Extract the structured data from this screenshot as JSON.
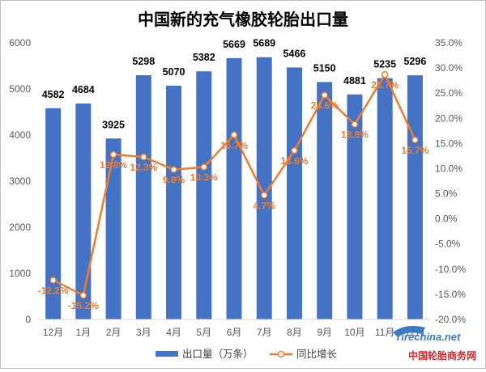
{
  "chart_data": {
    "type": "bar",
    "title": "中国新的充气橡胶轮胎出口量",
    "categories": [
      "12月",
      "1月",
      "2月",
      "3月",
      "4月",
      "5月",
      "6月",
      "7月",
      "8月",
      "9月",
      "10月",
      "11月",
      "12月"
    ],
    "series": [
      {
        "name": "出口量（万条）",
        "type": "bar",
        "axis": "left",
        "color": "#4472c4",
        "values": [
          4582,
          4684,
          3925,
          5298,
          5070,
          5382,
          5669,
          5689,
          5466,
          5150,
          4881,
          5235,
          5296
        ],
        "labels": [
          "4582",
          "4684",
          "3925",
          "5298",
          "5070",
          "5382",
          "5669",
          "5689",
          "5466",
          "5150",
          "4881",
          "5235",
          "5296"
        ]
      },
      {
        "name": "同比增长",
        "type": "line",
        "axis": "right",
        "color": "#ed7d31",
        "values": [
          -12.2,
          -15.2,
          12.8,
          12.3,
          9.8,
          10.3,
          16.7,
          4.7,
          13.6,
          24.6,
          18.8,
          28.7,
          15.7
        ],
        "labels": [
          "-12.2%",
          "-15.2%",
          "12.8%",
          "12.3%",
          "9.8%",
          "10.3%",
          "16.7%",
          "4.7%",
          "13.6%",
          "24.6%",
          "18.8%",
          "28.7%",
          "15.7%"
        ]
      }
    ],
    "y_left": {
      "min": 0,
      "max": 6000,
      "step": 1000,
      "ticks": [
        "0",
        "1000",
        "2000",
        "3000",
        "4000",
        "5000",
        "6000"
      ]
    },
    "y_right": {
      "min": -20,
      "max": 35,
      "step": 5,
      "ticks": [
        "-20.0%",
        "-15.0%",
        "-10.0%",
        "-5.0%",
        "0.0%",
        "5.0%",
        "10.0%",
        "15.0%",
        "20.0%",
        "25.0%",
        "30.0%",
        "35.0%"
      ]
    },
    "grid": false,
    "legend": "bottom"
  },
  "watermark": {
    "logo": "Tirechina.net",
    "text": "中国轮胎商务网"
  }
}
